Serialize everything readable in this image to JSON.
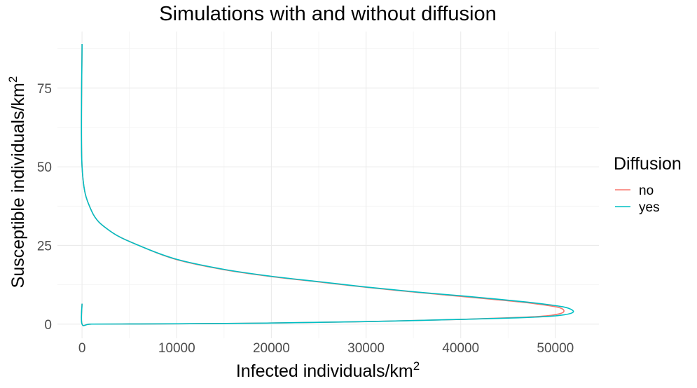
{
  "chart_data": {
    "type": "line",
    "title": "Simulations with and without diffusion",
    "xlabel": "Infected individuals/km",
    "xlabel_sup": "2",
    "ylabel": "Susceptible individuals/km",
    "ylabel_sup": "2",
    "xlim": [
      -2600,
      54600
    ],
    "ylim": [
      -4.5,
      93
    ],
    "x_ticks": [
      0,
      10000,
      20000,
      30000,
      40000,
      50000
    ],
    "x_tick_labels": [
      "0",
      "10000",
      "20000",
      "30000",
      "40000",
      "50000"
    ],
    "y_ticks": [
      0,
      25,
      50,
      75
    ],
    "y_tick_labels": [
      "0",
      "25",
      "50",
      "75"
    ],
    "grid": true,
    "legend": {
      "title": "Diffusion",
      "position": "right"
    },
    "series": [
      {
        "name": "no",
        "color": "#F8766D",
        "x": [
          0,
          0,
          1000,
          3000,
          6000,
          10000,
          15000,
          20000,
          25000,
          30000,
          35000,
          40000,
          44000,
          47000,
          49000,
          50200,
          50700,
          50900,
          50800,
          50300,
          49000,
          46000,
          40000,
          30000,
          20000,
          10000,
          5000,
          1000,
          0,
          0
        ],
        "y": [
          89,
          50,
          36,
          29.5,
          25,
          20.5,
          17.3,
          15.1,
          13.4,
          11.7,
          10.2,
          8.8,
          7.7,
          6.8,
          6.0,
          5.4,
          4.9,
          4.3,
          3.7,
          3.2,
          2.6,
          2.1,
          1.5,
          0.8,
          0.35,
          0.1,
          0.04,
          0.01,
          0,
          6.5
        ]
      },
      {
        "name": "yes",
        "color": "#00BFC4",
        "x": [
          0,
          0,
          1000,
          3000,
          6000,
          10000,
          15000,
          20000,
          25000,
          30000,
          35000,
          40000,
          44000,
          47000,
          49500,
          50800,
          51500,
          51900,
          51700,
          51000,
          49500,
          46000,
          40000,
          30000,
          20000,
          10000,
          5000,
          1000,
          0,
          0
        ],
        "y": [
          89,
          50,
          36,
          29.5,
          25,
          20.6,
          17.4,
          15.2,
          13.5,
          11.8,
          10.3,
          9.0,
          7.9,
          7.0,
          6.1,
          5.5,
          4.9,
          4.1,
          3.5,
          3.0,
          2.5,
          2.0,
          1.5,
          0.8,
          0.35,
          0.1,
          0.04,
          0.01,
          0,
          6.5
        ]
      }
    ]
  }
}
